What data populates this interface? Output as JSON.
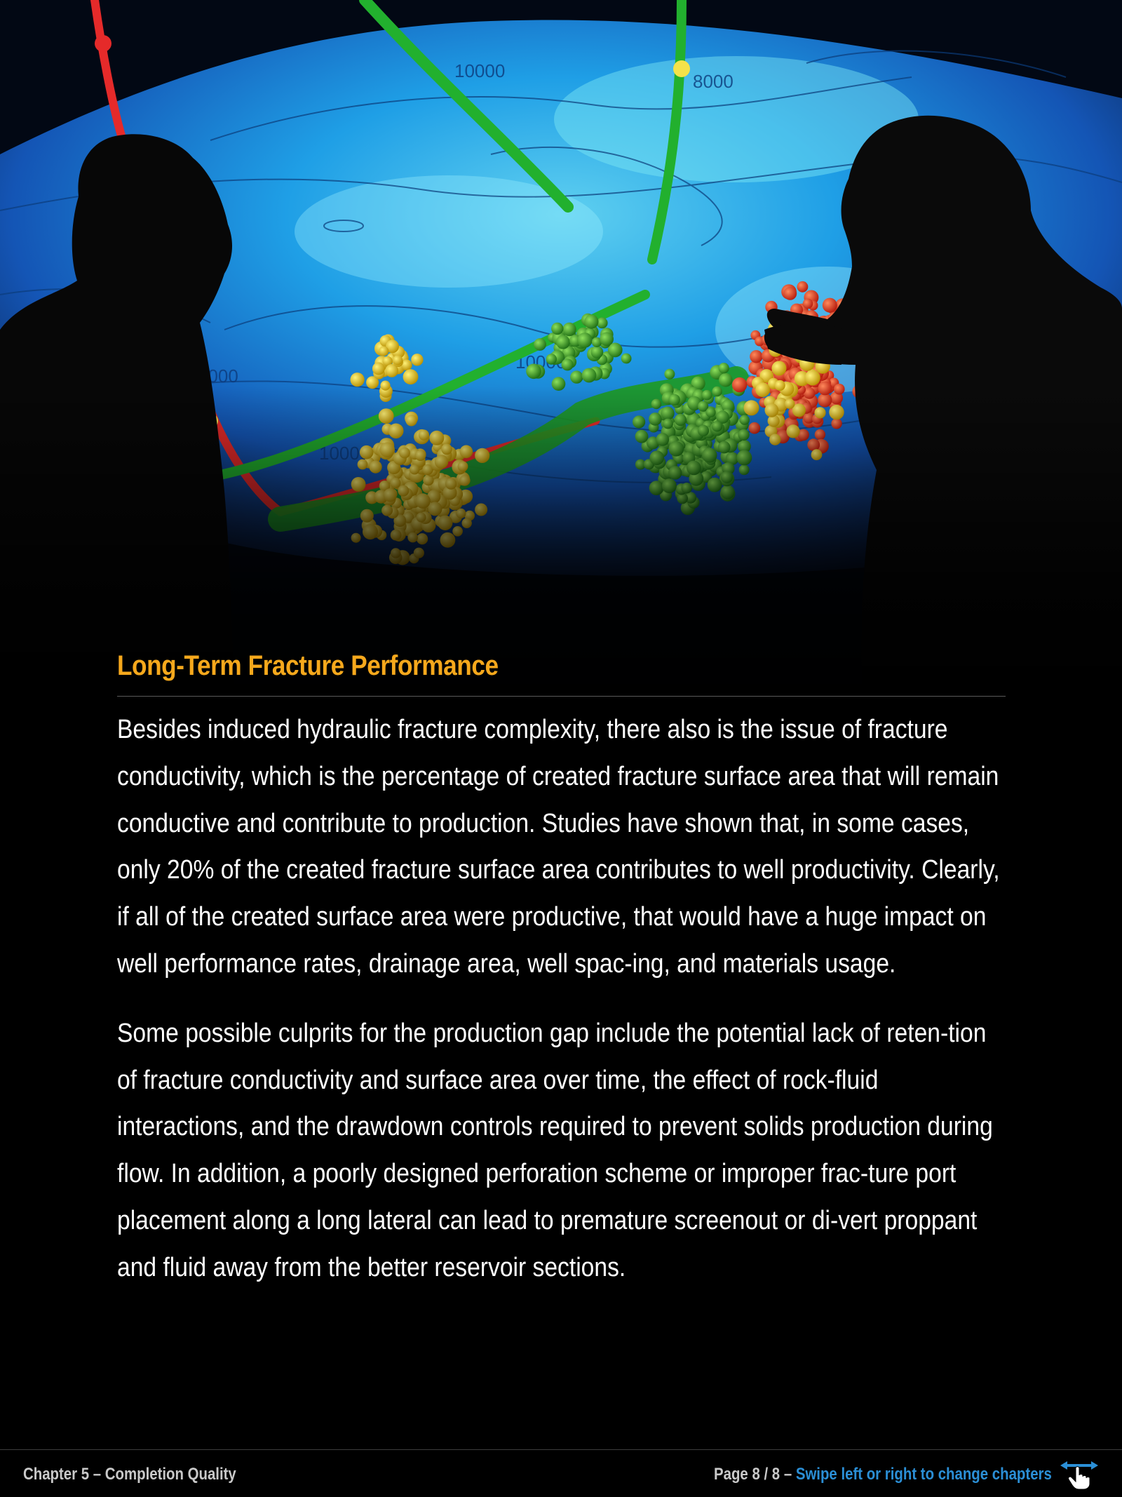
{
  "section": {
    "title": "Long-Term Fracture Performance",
    "paragraphs": [
      "Besides induced hydraulic fracture complexity, there also is the issue of fracture conductivity, which is the percentage of created fracture surface area that will remain conductive and contribute to production. Studies have shown that, in some cases, only 20% of the created fracture surface area contributes to well productivity. Clearly, if all of the created surface area were productive, that would have a huge impact on well performance rates, drainage area, well spac-ing, and materials usage.",
      "Some possible culprits for the production gap include the potential lack of reten-tion of fracture conductivity and surface area over time, the effect of rock-fluid interactions, and the drawdown controls required to prevent solids production during flow. In addition, a poorly designed perforation scheme or improper frac-ture port placement along a long lateral can lead to premature screenout or di-vert proppant and fluid away from the better reservoir sections."
    ]
  },
  "hero": {
    "contour_labels": [
      "10000",
      "8000",
      "8000",
      "10000",
      "10000"
    ]
  },
  "footer": {
    "chapter": "Chapter 5 – Completion Quality",
    "page": "Page 8 / 8",
    "separator": " – ",
    "swipe": "Swipe left or right to change chapters",
    "swipe_icon": "swipe-hand-icon"
  },
  "colors": {
    "title": "#f6a81c",
    "link": "#2b8fd6",
    "background": "#000000"
  }
}
